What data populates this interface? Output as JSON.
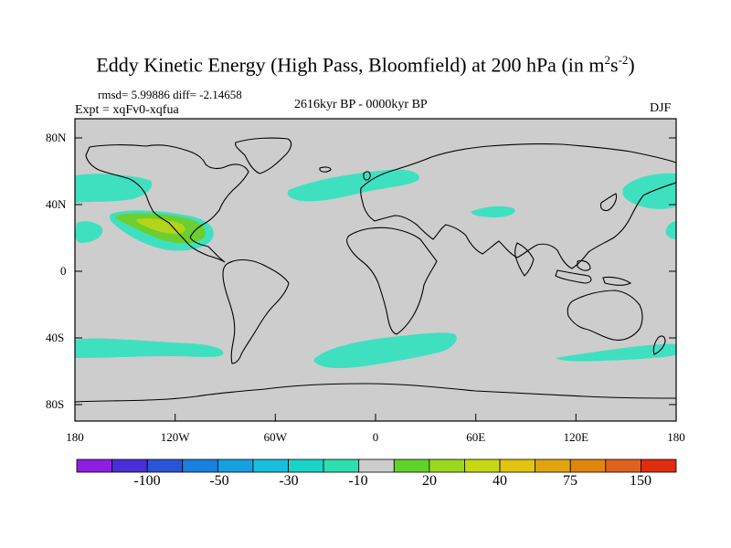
{
  "title": {
    "main": "Eddy Kinetic Energy (High Pass, Bloomfield) at 200 hPa (in m",
    "sup1": "2",
    "mid": "s",
    "sup2": "-2",
    "end": ")"
  },
  "stats": "rmsd= 5.99886 diff= -2.14658",
  "expt": "Expt = xqFv0-xqfua",
  "period": "2616kyr BP - 0000kyr BP",
  "season": "DJF",
  "lat_ticks": [
    "80N",
    "40N",
    "0",
    "40S",
    "80S"
  ],
  "lon_ticks": [
    "180",
    "120W",
    "60W",
    "0",
    "60E",
    "120E",
    "180"
  ],
  "colorbar": {
    "labels": [
      "-100",
      "-50",
      "-30",
      "-10",
      "20",
      "40",
      "75",
      "150"
    ],
    "colors": [
      "#8f1fe0",
      "#4a2ed8",
      "#2b55d8",
      "#1a80e0",
      "#17a0e0",
      "#17bfe0",
      "#19d4c7",
      "#2ddfae",
      "#cdcdcd",
      "#5fd32a",
      "#9ad81e",
      "#c5d812",
      "#e0c40e",
      "#e0a50e",
      "#e0850e",
      "#e0621e",
      "#e02d10"
    ]
  },
  "colors": {
    "land_ocean": "#cdcdcd",
    "cyan": "#3ee0c0",
    "green": "#6ccf2f",
    "yellowgreen": "#b4d41a"
  }
}
